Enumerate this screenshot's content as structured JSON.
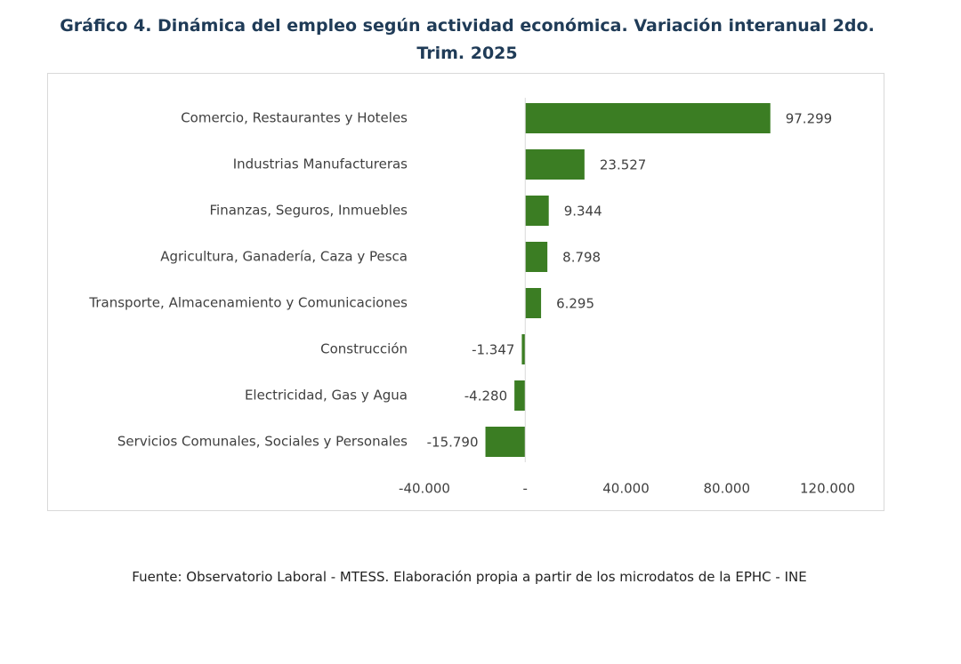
{
  "chart_data": {
    "type": "barh",
    "title": "Gráfico 4. Dinámica del empleo según actividad económica. Variación interanual 2do. Trim. 2025",
    "source": "Fuente: Observatorio Laboral - MTESS. Elaboración propia a partir de los microdatos de la EPHC - INE",
    "categories": [
      "Comercio, Restaurantes y Hoteles",
      "Industrias Manufactureras",
      "Finanzas, Seguros, Inmuebles",
      "Agricultura, Ganadería, Caza y Pesca",
      "Transporte, Almacenamiento y Comunicaciones",
      "Construcción",
      "Electricidad, Gas y Agua",
      "Servicios Comunales, Sociales y Personales"
    ],
    "values": [
      97299,
      23527,
      9344,
      8798,
      6295,
      -1347,
      -4280,
      -15790
    ],
    "value_labels": [
      "97.299",
      "23.527",
      "9.344",
      "8.798",
      "6.295",
      "-1.347",
      "-4.280",
      "-15.790"
    ],
    "color": "#3b7d23",
    "xlim": [
      -40000,
      120000
    ],
    "xticks": [
      {
        "value": -40000,
        "label": "-40.000"
      },
      {
        "value": 0,
        "label": "-"
      },
      {
        "value": 40000,
        "label": "40.000"
      },
      {
        "value": 80000,
        "label": "80.000"
      },
      {
        "value": 120000,
        "label": "120.000"
      }
    ],
    "grid": false
  }
}
